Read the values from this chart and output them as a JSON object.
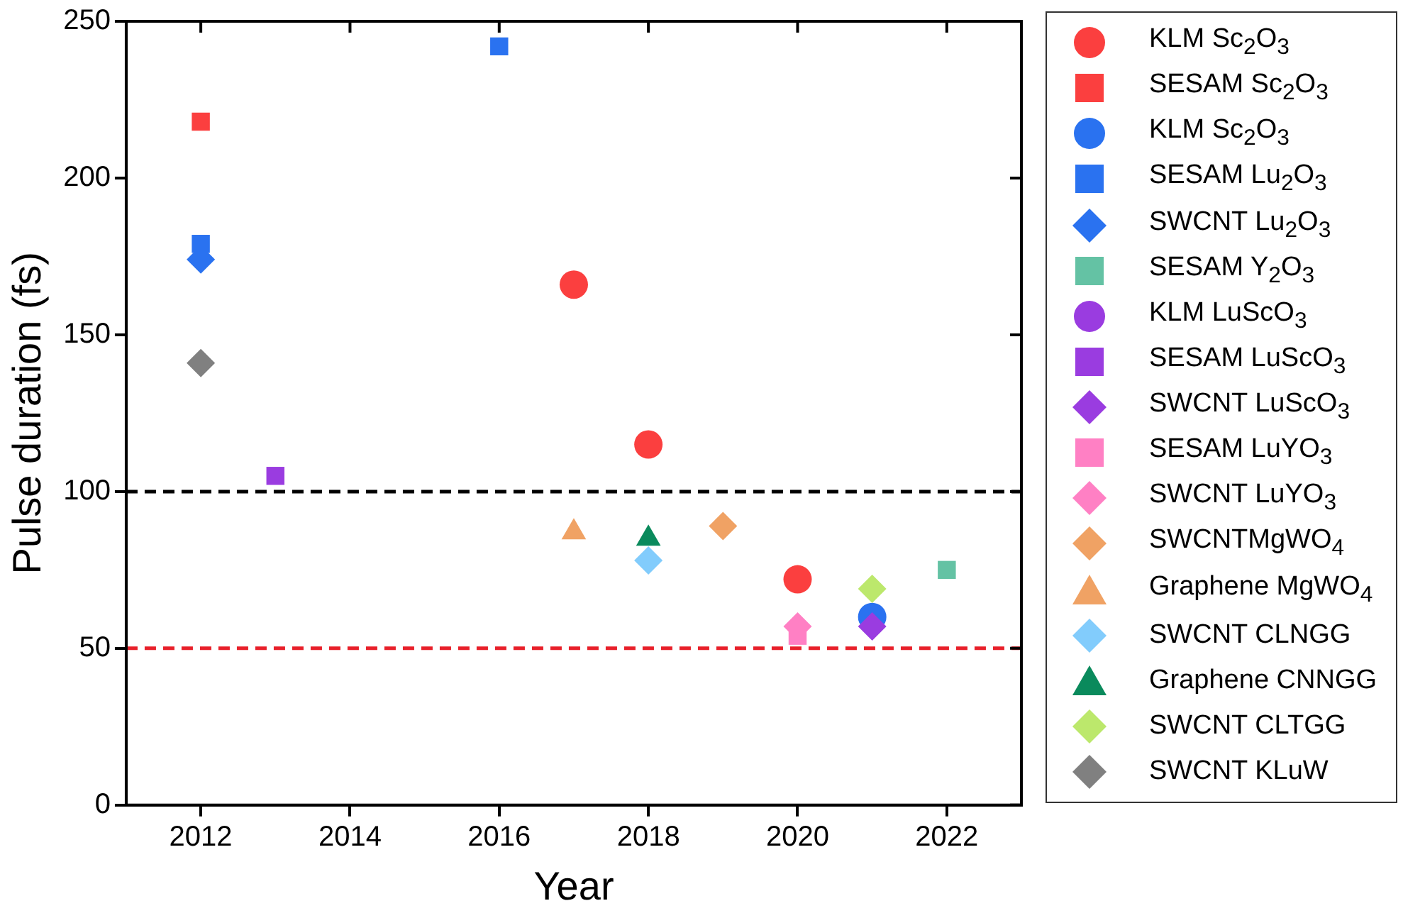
{
  "chart_data": {
    "type": "scatter",
    "xlabel": "Year",
    "ylabel": "Pulse duration (fs)",
    "xlim": [
      2011,
      2023
    ],
    "xticks": [
      2012,
      2014,
      2016,
      2018,
      2020,
      2022
    ],
    "ylim": [
      0,
      250
    ],
    "yticks": [
      0,
      50,
      100,
      150,
      200,
      250
    ],
    "grid": false,
    "legend": "right",
    "ref_lines": [
      {
        "axis": "y",
        "value": 100,
        "color": "#000000",
        "line_style": "dashed"
      },
      {
        "axis": "y",
        "value": 50,
        "color": "#e8202a",
        "line_style": "dashed"
      }
    ],
    "series": [
      {
        "name": "KLM Sc$_{2}$O$_{3}$",
        "color": "#fb3f3f",
        "marker": "circle",
        "x": [
          2017,
          2018,
          2020
        ],
        "values": [
          166,
          115,
          72
        ]
      },
      {
        "name": "SESAM Sc$_{2}$O$_{3}$",
        "color": "#fb3f3f",
        "marker": "square",
        "x": [
          2012
        ],
        "values": [
          218
        ]
      },
      {
        "name": "KLM Sc$_{2}$O$_{3}$",
        "color": "#2a72f0",
        "marker": "circle",
        "x": [
          2021
        ],
        "values": [
          60
        ]
      },
      {
        "name": "SESAM Lu$_{2}$O$_{3}$",
        "color": "#2a72f0",
        "marker": "square",
        "x": [
          2016,
          2012
        ],
        "values": [
          242,
          179
        ]
      },
      {
        "name": "SWCNT Lu$_{2}$O$_{3}$",
        "color": "#2a72f0",
        "marker": "diamond",
        "x": [
          2012
        ],
        "values": [
          174
        ]
      },
      {
        "name": "SESAM Y$_{2}$O$_{3}$",
        "color": "#64c2a4",
        "marker": "square",
        "x": [
          2022
        ],
        "values": [
          75
        ]
      },
      {
        "name": "KLM LuScO$_{3}$",
        "color": "#9a3ce0",
        "marker": "circle"
      },
      {
        "name": "SESAM LuScO$_{3}$",
        "color": "#9a3ce0",
        "marker": "square",
        "x": [
          2013
        ],
        "values": [
          105
        ]
      },
      {
        "name": "SWCNT LuScO$_{3}$",
        "color": "#9a3ce0",
        "marker": "diamond",
        "x": [
          2021
        ],
        "values": [
          57
        ]
      },
      {
        "name": "SESAM LuYO$_{3}$",
        "color": "#ff80c4",
        "marker": "square",
        "x": [
          2020
        ],
        "values": [
          54
        ]
      },
      {
        "name": "SWCNT LuYO$_{3}$",
        "color": "#ff80c4",
        "marker": "diamond",
        "x": [
          2020
        ],
        "values": [
          57
        ]
      },
      {
        "name": "SWCNTMgWO$_{4}$",
        "color": "#f0a264",
        "marker": "diamond",
        "x": [
          2019
        ],
        "values": [
          89
        ]
      },
      {
        "name": "Graphene MgWO$_{4}$",
        "color": "#f0a264",
        "marker": "triangle",
        "x": [
          2017
        ],
        "values": [
          87
        ]
      },
      {
        "name": "SWCNT CLNGG",
        "color": "#82ccfc",
        "marker": "diamond",
        "x": [
          2018
        ],
        "values": [
          78
        ]
      },
      {
        "name": "Graphene CNNGG",
        "color": "#0a8a5c",
        "marker": "triangle",
        "x": [
          2018
        ],
        "values": [
          85
        ]
      },
      {
        "name": "SWCNT CLTGG",
        "color": "#bce86c",
        "marker": "diamond",
        "x": [
          2021
        ],
        "values": [
          69
        ]
      },
      {
        "name": "SWCNT KLuW",
        "color": "#808080",
        "marker": "diamond",
        "x": [
          2012
        ],
        "values": [
          141
        ]
      }
    ]
  }
}
